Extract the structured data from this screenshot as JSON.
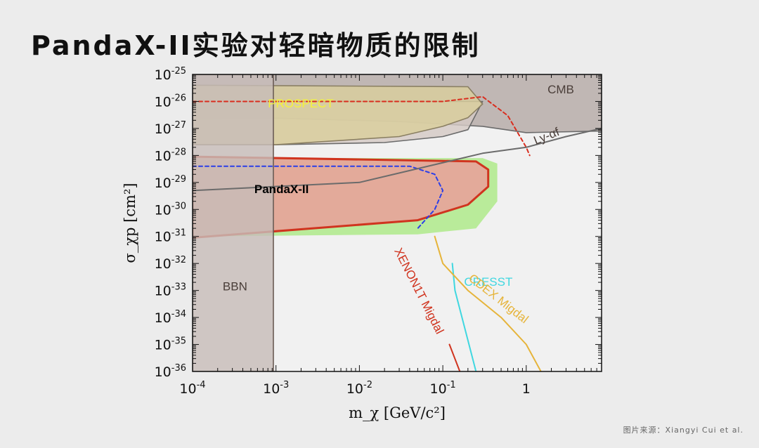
{
  "slide": {
    "title": "PandaX-II实验对轻暗物质的限制",
    "source": "图片来源：Xiangyi Cui et al."
  },
  "chart_data": {
    "type": "area",
    "x_scale": "log",
    "y_scale": "log",
    "xlim": [
      0.0001,
      8
    ],
    "ylim": [
      1e-36,
      1e-25
    ],
    "xlabel": "m_χ [GeV/c²]",
    "ylabel": "σ_χp [cm²]",
    "x_ticks": [
      {
        "value": 0.0001,
        "base": "10",
        "exp": "-4"
      },
      {
        "value": 0.001,
        "base": "10",
        "exp": "-3"
      },
      {
        "value": 0.01,
        "base": "10",
        "exp": "-2"
      },
      {
        "value": 0.1,
        "base": "10",
        "exp": "-1"
      },
      {
        "value": 1,
        "base": "1",
        "exp": ""
      }
    ],
    "y_ticks": [
      {
        "value": 1e-25,
        "base": "10",
        "exp": "-25"
      },
      {
        "value": 1e-26,
        "base": "10",
        "exp": "-26"
      },
      {
        "value": 1e-27,
        "base": "10",
        "exp": "-27"
      },
      {
        "value": 1e-28,
        "base": "10",
        "exp": "-28"
      },
      {
        "value": 1e-29,
        "base": "10",
        "exp": "-29"
      },
      {
        "value": 1e-30,
        "base": "10",
        "exp": "-30"
      },
      {
        "value": 1e-31,
        "base": "10",
        "exp": "-31"
      },
      {
        "value": 1e-32,
        "base": "10",
        "exp": "-32"
      },
      {
        "value": 1e-33,
        "base": "10",
        "exp": "-33"
      },
      {
        "value": 1e-34,
        "base": "10",
        "exp": "-34"
      },
      {
        "value": 1e-35,
        "base": "10",
        "exp": "-35"
      },
      {
        "value": 1e-36,
        "base": "10",
        "exp": "-36"
      }
    ],
    "regions": [
      {
        "name": "CMB",
        "fill": "#b5aaa6",
        "stroke": "#6b6b6b",
        "points": [
          [
            0.0001,
            1e-25
          ],
          [
            8,
            1e-25
          ],
          [
            8,
            8e-28
          ],
          [
            1,
            7e-28
          ],
          [
            0.3,
            1.2e-27
          ],
          [
            0.03,
            1.8e-27
          ],
          [
            0.001,
            2.4e-27
          ],
          [
            0.0001,
            2.2e-27
          ]
        ]
      },
      {
        "name": "Ly-αf",
        "fill": "#d4c9c5",
        "stroke": "#6b6b6b",
        "points": [
          [
            0.0001,
            1e-26
          ],
          [
            0.3,
            1e-26
          ],
          [
            0.2,
            9e-28
          ],
          [
            0.1,
            5e-28
          ],
          [
            0.02,
            3e-28
          ],
          [
            0.001,
            2.5e-28
          ],
          [
            0.0001,
            2.5e-28
          ]
        ]
      },
      {
        "name": "PROSPECT",
        "fill": "#d9ce9c",
        "stroke": "#8a7f62",
        "points": [
          [
            0.0001,
            4e-26
          ],
          [
            0.2,
            3.5e-26
          ],
          [
            0.3,
            8e-27
          ],
          [
            0.2,
            2.5e-27
          ],
          [
            0.1,
            1.2e-27
          ],
          [
            0.03,
            5e-28
          ],
          [
            0.001,
            2.5e-28
          ],
          [
            0.0001,
            2.5e-28
          ]
        ]
      },
      {
        "name": "PandaX-II",
        "fill": "#e8a09a",
        "stroke": "#d0341f",
        "green_band": [
          [
            0.0001,
            8e-29
          ],
          [
            0.3,
            8e-29
          ],
          [
            0.45,
            5e-29
          ],
          [
            0.45,
            2e-30
          ],
          [
            0.25,
            2e-31
          ],
          [
            0.05,
            1.2e-31
          ],
          [
            0.0001,
            1e-31
          ]
        ],
        "points": [
          [
            0.0001,
            9e-29
          ],
          [
            0.25,
            6e-29
          ],
          [
            0.35,
            3e-29
          ],
          [
            0.35,
            7e-30
          ],
          [
            0.2,
            1.5e-30
          ],
          [
            0.05,
            4e-31
          ],
          [
            0.0001,
            9e-32
          ]
        ]
      },
      {
        "name": "BBN",
        "fill": "#c7bcb8",
        "stroke": "#6b5c55",
        "points": [
          [
            0.0001,
            1e-25
          ],
          [
            0.00093,
            1e-25
          ],
          [
            0.00093,
            1e-36
          ],
          [
            0.0001,
            1e-36
          ]
        ]
      }
    ],
    "lines": [
      {
        "name": "PROSPECT-dashed",
        "color": "#d92d1e",
        "style": "dashed",
        "points": [
          [
            0.0001,
            1e-26
          ],
          [
            0.1,
            1e-26
          ],
          [
            0.3,
            1.5e-26
          ],
          [
            0.6,
            3e-27
          ],
          [
            1,
            2e-28
          ],
          [
            1.1,
            1e-28
          ]
        ]
      },
      {
        "name": "PandaX-dashed",
        "color": "#2b3ee8",
        "style": "dashed",
        "points": [
          [
            0.0001,
            4e-29
          ],
          [
            0.04,
            4e-29
          ],
          [
            0.08,
            2e-29
          ],
          [
            0.1,
            5e-30
          ],
          [
            0.08,
            1e-30
          ],
          [
            0.05,
            2e-31
          ]
        ]
      },
      {
        "name": "Ly-αf-line",
        "color": "#6b6b6b",
        "style": "solid",
        "points": [
          [
            0.0001,
            5e-30
          ],
          [
            0.01,
            1e-29
          ],
          [
            0.3,
            1.2e-28
          ],
          [
            1,
            2e-28
          ],
          [
            3,
            5e-28
          ],
          [
            8,
            1e-27
          ]
        ]
      },
      {
        "name": "XENON1T Migdal",
        "color": "#d0341f",
        "style": "solid",
        "points": [
          [
            0.12,
            1e-35
          ],
          [
            0.16,
            1e-36
          ]
        ]
      },
      {
        "name": "CRESST",
        "color": "#3fd7e0",
        "style": "solid",
        "points": [
          [
            0.13,
            1e-32
          ],
          [
            0.14,
            1e-33
          ],
          [
            0.18,
            5e-35
          ],
          [
            0.25,
            1e-36
          ]
        ]
      },
      {
        "name": "CDEX Migdal",
        "color": "#e6b43a",
        "style": "solid",
        "points": [
          [
            0.08,
            1e-31
          ],
          [
            0.1,
            1e-32
          ],
          [
            0.2,
            1e-33
          ],
          [
            0.5,
            1e-34
          ],
          [
            1,
            1e-35
          ],
          [
            1.5,
            1e-36
          ]
        ]
      }
    ],
    "labels": [
      {
        "text": "CMB",
        "x": 1.8,
        "y": 2e-26,
        "color": "#4a3e39",
        "rotate": 0,
        "weight": "normal",
        "size": 17
      },
      {
        "text": "PROSPECT",
        "x": 0.0008,
        "y": 6e-27,
        "color": "#f5f23a",
        "rotate": 0,
        "weight": "normal",
        "size": 17
      },
      {
        "text": "Ly-αf",
        "x": 1.3,
        "y": 2.5e-28,
        "color": "#4a3e39",
        "rotate": -22,
        "weight": "normal",
        "size": 16
      },
      {
        "text": "PandaX-II",
        "x": 0.00055,
        "y": 4e-30,
        "color": "#000000",
        "rotate": 0,
        "weight": "bold",
        "size": 20
      },
      {
        "text": "BBN",
        "x": 0.00023,
        "y": 1e-33,
        "color": "#4a3e39",
        "rotate": 0,
        "weight": "normal",
        "size": 17
      },
      {
        "text": "XENON1T Migdal",
        "x": 0.026,
        "y": 3e-32,
        "color": "#d0341f",
        "rotate": 63,
        "weight": "normal",
        "size": 16
      },
      {
        "text": "CRESST",
        "x": 0.18,
        "y": 1.5e-33,
        "color": "#3fd7e0",
        "rotate": 0,
        "weight": "normal",
        "size": 17
      },
      {
        "text": "CDEX Migdal",
        "x": 0.2,
        "y": 2.5e-33,
        "color": "#e6b43a",
        "rotate": 38,
        "weight": "normal",
        "size": 16
      }
    ]
  }
}
